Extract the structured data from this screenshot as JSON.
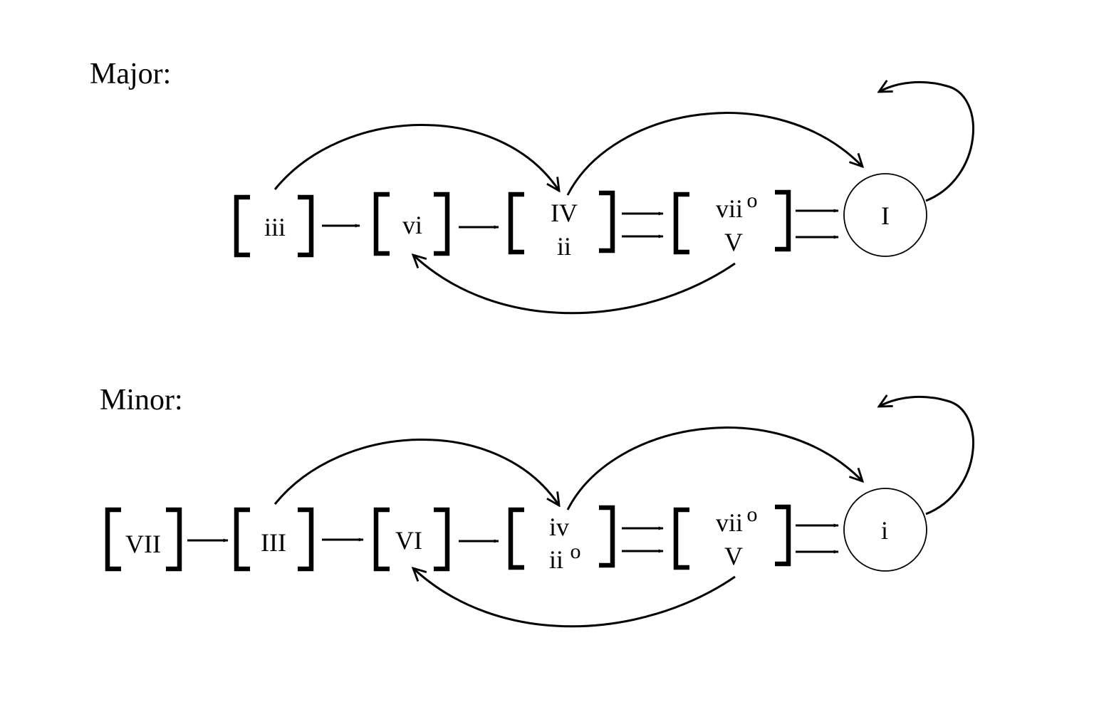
{
  "major": {
    "title": "Major:",
    "chords": {
      "iii": "iii",
      "vi": "vi",
      "iv_top": "IV",
      "iv_bottom": "ii",
      "vii_top": "vii",
      "vii_sup": "o",
      "v": "V",
      "tonic": "I"
    }
  },
  "minor": {
    "title": "Minor:",
    "chords": {
      "vii": "VII",
      "iii": "III",
      "vi": "VI",
      "iv_top": "iv",
      "iv_bottom": "ii",
      "iv_bottom_sup": "o",
      "vii_top": "vii",
      "vii_sup": "o",
      "v": "V",
      "tonic": "i"
    }
  }
}
